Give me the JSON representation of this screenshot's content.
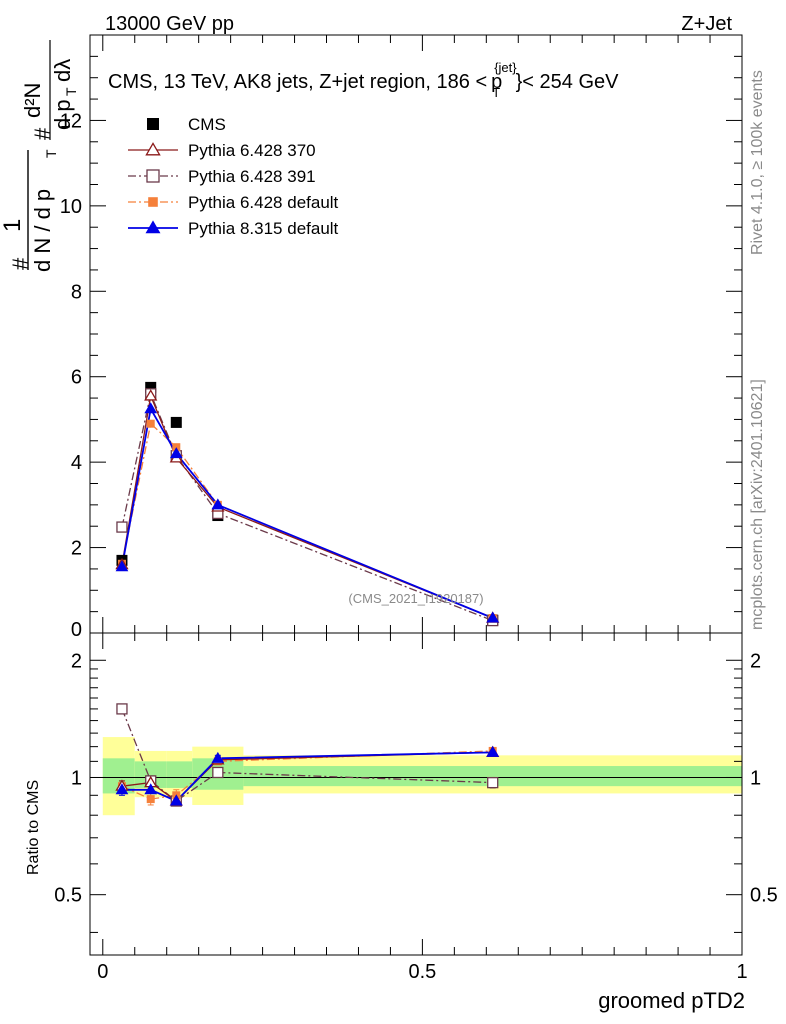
{
  "header": {
    "left": "13000 GeV pp",
    "right": "Z+Jet"
  },
  "side_labels": {
    "rivet": "Rivet 4.1.0, ≥ 100k events",
    "mcplots": "mcplots.cern.ch [arXiv:2401.10621]"
  },
  "chart_data": {
    "type": "line",
    "title": "CMS, 13 TeV, AK8 jets, Z+jet region, 186 < pT{jet} < 254 GeV",
    "title_parts": {
      "main": "CMS, 13 TeV, AK8 jets, Z+jet region, 186 <",
      "sub": "T",
      "sup": "{jet}",
      "p": "p",
      "tail": "}< 254 GeV"
    },
    "watermark": "(CMS_2021_I1920187)",
    "xlabel": "groomed pTD2",
    "ylabel_top": "1 / (dN / d pT) # d²N / (# d pT dλ)",
    "ylabel_ratio": "Ratio to CMS",
    "xlim": [
      -0.02,
      1.0
    ],
    "ylim": [
      0,
      14
    ],
    "ratio_ylim": [
      0.35,
      2.35
    ],
    "x_ticks": [
      0,
      0.5,
      1
    ],
    "x_tick_labels": [
      "0",
      "0.5",
      "1"
    ],
    "y_ticks": [
      0,
      2,
      4,
      6,
      8,
      10,
      12
    ],
    "y_tick_labels": [
      "0",
      "2",
      "4",
      "6",
      "8",
      "10",
      "12"
    ],
    "ratio_ticks": [
      0.5,
      1,
      2
    ],
    "ratio_tick_labels": [
      "0.5",
      "1",
      "2"
    ],
    "bins": [
      {
        "lo": 0.0,
        "hi": 0.05
      },
      {
        "lo": 0.05,
        "hi": 0.1
      },
      {
        "lo": 0.1,
        "hi": 0.14
      },
      {
        "lo": 0.14,
        "hi": 0.22
      },
      {
        "lo": 0.22,
        "hi": 1.0
      }
    ],
    "x": [
      0.03,
      0.075,
      0.115,
      0.18,
      0.61
    ],
    "cms": {
      "name": "CMS",
      "values": [
        1.7,
        5.75,
        4.93,
        2.75,
        0.3
      ],
      "band_inner": [
        [
          0.91,
          1.12
        ],
        [
          0.94,
          1.1
        ],
        [
          0.94,
          1.1
        ],
        [
          0.93,
          1.12
        ],
        [
          0.95,
          1.07
        ]
      ],
      "band_outer": [
        [
          0.8,
          1.27
        ],
        [
          0.89,
          1.17
        ],
        [
          0.89,
          1.17
        ],
        [
          0.85,
          1.2
        ],
        [
          0.91,
          1.14
        ]
      ]
    },
    "series": [
      {
        "name": "Pythia 6.428 370",
        "color": "#8b1a1a",
        "dash": "",
        "marker": "triangle-open",
        "values": [
          1.6,
          5.55,
          4.1,
          2.95,
          0.35
        ],
        "ratio": [
          0.95,
          0.97,
          0.87,
          1.11,
          1.16
        ],
        "ratio_err": [
          0.03,
          0.02,
          0.02,
          0.02,
          0.02
        ]
      },
      {
        "name": "Pythia 6.428 391",
        "color": "#6b3a4a",
        "dash": "8,3,2,3",
        "marker": "square-open",
        "values": [
          2.48,
          5.6,
          4.15,
          2.8,
          0.29
        ],
        "ratio": [
          1.5,
          0.98,
          0.87,
          1.03,
          0.97
        ],
        "ratio_err": [
          0.04,
          0.02,
          0.02,
          0.02,
          0.03
        ]
      },
      {
        "name": "Pythia 6.428 default",
        "color": "#f5803a",
        "dash": "8,3,2,3",
        "marker": "square-filled",
        "values": [
          1.62,
          4.9,
          4.35,
          3.0,
          0.35
        ],
        "ratio": [
          0.95,
          0.88,
          0.9,
          1.1,
          1.17
        ],
        "ratio_err": [
          0.03,
          0.03,
          0.03,
          0.02,
          0.02
        ]
      },
      {
        "name": "Pythia 8.315 default",
        "color": "#0000e6",
        "dash": "",
        "marker": "triangle-filled",
        "values": [
          1.55,
          5.25,
          4.2,
          3.0,
          0.35
        ],
        "ratio": [
          0.93,
          0.93,
          0.87,
          1.12,
          1.16
        ],
        "ratio_err": [
          0.03,
          0.02,
          0.02,
          0.02,
          0.02
        ]
      }
    ]
  }
}
